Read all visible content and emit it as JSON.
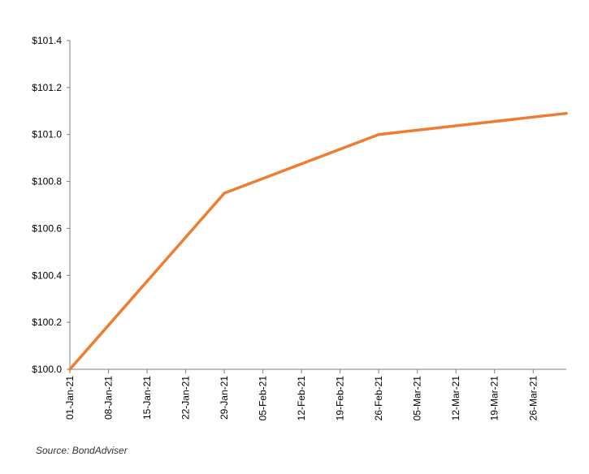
{
  "chart_data": {
    "type": "line",
    "title": "",
    "xlabel": "",
    "ylabel": "",
    "x_ticks": [
      "01-Jan-21",
      "08-Jan-21",
      "15-Jan-21",
      "22-Jan-21",
      "29-Jan-21",
      "05-Feb-21",
      "12-Feb-21",
      "19-Feb-21",
      "26-Feb-21",
      "05-Mar-21",
      "12-Mar-21",
      "19-Mar-21",
      "26-Mar-21"
    ],
    "x_range": [
      "2021-01-01",
      "2021-04-01"
    ],
    "y_ticks": [
      "$100.0",
      "$100.2",
      "$100.4",
      "$100.6",
      "$100.8",
      "$101.0",
      "$101.2",
      "$101.4"
    ],
    "ylim": [
      100.0,
      101.4
    ],
    "grid": false,
    "series": [
      {
        "color": "#ED7D31",
        "points": [
          {
            "x": "2021-01-01",
            "y": 100.0
          },
          {
            "x": "2021-01-29",
            "y": 100.75
          },
          {
            "x": "2021-02-26",
            "y": 101.0
          },
          {
            "x": "2021-04-01",
            "y": 101.09
          }
        ]
      }
    ]
  },
  "source": "Source: BondAdviser"
}
